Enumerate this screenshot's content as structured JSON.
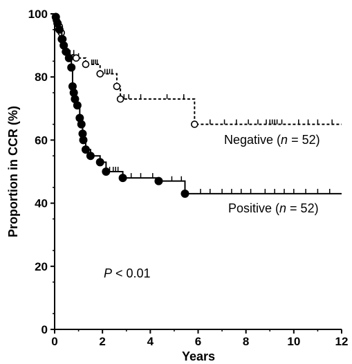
{
  "chart_data": {
    "type": "line",
    "xlabel": "Years",
    "ylabel": "Proportion in CCR (%)",
    "xlim": [
      0,
      12
    ],
    "ylim": [
      0,
      100
    ],
    "xticks": [
      "0",
      "2",
      "4",
      "6",
      "8",
      "10",
      "12"
    ],
    "yticks": [
      "0",
      "20",
      "40",
      "60",
      "80",
      "100"
    ],
    "annotation": {
      "prefix": "P",
      "suffix": " < 0.01"
    },
    "series": [
      {
        "label": {
          "name": "Negative (",
          "n": "n",
          "rest": " = 52)"
        },
        "line_style": "dashed",
        "marker": "open-circle",
        "steps": [
          [
            0,
            100
          ],
          [
            0.07,
            99
          ],
          [
            0.12,
            98
          ],
          [
            0.2,
            96
          ],
          [
            0.28,
            94
          ],
          [
            0.35,
            92
          ],
          [
            0.4,
            90
          ],
          [
            0.45,
            88
          ],
          [
            0.6,
            87
          ],
          [
            0.9,
            86
          ],
          [
            1.3,
            84
          ],
          [
            1.9,
            81
          ],
          [
            2.6,
            77
          ],
          [
            2.75,
            73
          ],
          [
            5.85,
            65
          ],
          [
            12,
            65
          ]
        ],
        "events": [
          [
            0.07,
            98
          ],
          [
            0.2,
            96
          ],
          [
            0.28,
            94
          ],
          [
            0.35,
            92
          ],
          [
            0.4,
            90
          ],
          [
            0.45,
            88
          ],
          [
            0.9,
            86
          ],
          [
            1.3,
            84
          ],
          [
            1.9,
            81
          ],
          [
            2.6,
            77
          ],
          [
            2.75,
            73
          ],
          [
            5.85,
            65
          ]
        ],
        "censored": [
          0.5,
          0.65,
          0.8,
          1.0,
          1.55,
          1.62,
          1.7,
          1.78,
          2.1,
          2.2,
          2.3,
          2.4,
          2.9,
          3.1,
          3.6,
          4.7,
          5.4,
          6.5,
          7.1,
          7.6,
          8.1,
          8.5,
          8.85,
          9.0,
          9.1,
          9.2,
          9.3,
          9.5,
          10.2,
          10.6,
          11.0,
          11.6
        ]
      },
      {
        "label": {
          "name": "Positive (",
          "n": "n",
          "rest": " = 52)"
        },
        "line_style": "solid",
        "marker": "filled-circle",
        "steps": [
          [
            0,
            100
          ],
          [
            0.05,
            99
          ],
          [
            0.12,
            97
          ],
          [
            0.2,
            95
          ],
          [
            0.3,
            92
          ],
          [
            0.38,
            90
          ],
          [
            0.48,
            88
          ],
          [
            0.6,
            86
          ],
          [
            0.7,
            83
          ],
          [
            0.75,
            77
          ],
          [
            0.8,
            75
          ],
          [
            0.85,
            73
          ],
          [
            0.95,
            71
          ],
          [
            1.05,
            67
          ],
          [
            1.12,
            65
          ],
          [
            1.17,
            62
          ],
          [
            1.2,
            60
          ],
          [
            1.3,
            57
          ],
          [
            1.5,
            55
          ],
          [
            1.9,
            53
          ],
          [
            2.15,
            50
          ],
          [
            2.85,
            48
          ],
          [
            4.35,
            47
          ],
          [
            5.45,
            43
          ],
          [
            12,
            43
          ]
        ],
        "events": [
          [
            0.05,
            99
          ],
          [
            0.12,
            97
          ],
          [
            0.2,
            95
          ],
          [
            0.3,
            92
          ],
          [
            0.38,
            90
          ],
          [
            0.48,
            88
          ],
          [
            0.6,
            86
          ],
          [
            0.7,
            83
          ],
          [
            0.75,
            77
          ],
          [
            0.8,
            75
          ],
          [
            0.85,
            73
          ],
          [
            0.95,
            71
          ],
          [
            1.05,
            67
          ],
          [
            1.12,
            65
          ],
          [
            1.17,
            62
          ],
          [
            1.2,
            60
          ],
          [
            1.3,
            57
          ],
          [
            1.5,
            55
          ],
          [
            1.9,
            53
          ],
          [
            2.15,
            50
          ],
          [
            2.85,
            48
          ],
          [
            4.35,
            47
          ],
          [
            5.45,
            43
          ]
        ],
        "censored": [
          2.3,
          2.45,
          2.55,
          2.65,
          3.2,
          3.6,
          4.1,
          4.9,
          5.3,
          6.1,
          6.5,
          7.0,
          7.4,
          7.8,
          8.2,
          8.8,
          9.2,
          9.6,
          10.0,
          10.5,
          11.0,
          11.5
        ]
      }
    ]
  }
}
